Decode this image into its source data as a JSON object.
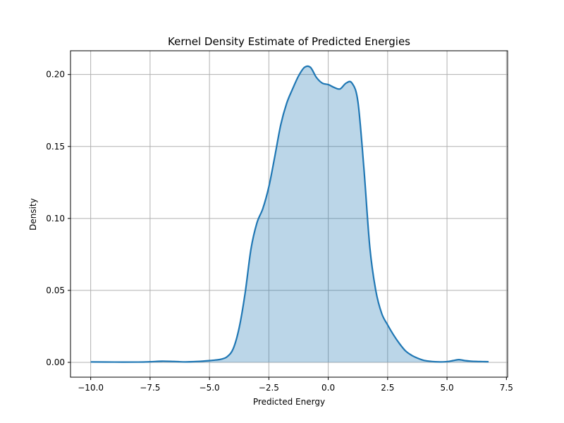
{
  "chart_data": {
    "type": "area",
    "title": "Kernel Density Estimate of Predicted Energies",
    "xlabel": "Predicted Energy",
    "ylabel": "Density",
    "xlim": [
      -10.85,
      7.55
    ],
    "ylim": [
      -0.0103,
      0.2165
    ],
    "xticks": [
      -10.0,
      -7.5,
      -5.0,
      -2.5,
      0.0,
      2.5,
      5.0,
      7.5
    ],
    "xtick_labels": [
      "−10.0",
      "−7.5",
      "−5.0",
      "−2.5",
      "0.0",
      "2.5",
      "5.0",
      "7.5"
    ],
    "yticks": [
      0.0,
      0.05,
      0.1,
      0.15,
      0.2
    ],
    "ytick_labels": [
      "0.00",
      "0.05",
      "0.10",
      "0.15",
      "0.20"
    ],
    "grid": true,
    "series": [
      {
        "line_color": "#1f77b4",
        "fill_color": "#1f77b4",
        "x": [
          -10.0,
          -9.0,
          -8.0,
          -7.5,
          -7.0,
          -6.5,
          -6.0,
          -5.5,
          -5.0,
          -4.75,
          -4.5,
          -4.25,
          -4.0,
          -3.75,
          -3.5,
          -3.25,
          -3.0,
          -2.75,
          -2.5,
          -2.25,
          -2.0,
          -1.75,
          -1.5,
          -1.25,
          -1.0,
          -0.75,
          -0.5,
          -0.25,
          0.0,
          0.25,
          0.5,
          0.75,
          1.0,
          1.25,
          1.5,
          1.75,
          2.0,
          2.25,
          2.5,
          2.75,
          3.0,
          3.25,
          3.5,
          3.75,
          4.0,
          4.25,
          4.5,
          4.75,
          5.0,
          5.25,
          5.5,
          5.75,
          6.0,
          6.25,
          6.5,
          6.75
        ],
        "y": [
          0.0003,
          0.0002,
          0.0002,
          0.0004,
          0.0008,
          0.0006,
          0.0003,
          0.0006,
          0.0012,
          0.0016,
          0.0022,
          0.004,
          0.0095,
          0.024,
          0.048,
          0.079,
          0.097,
          0.107,
          0.122,
          0.143,
          0.165,
          0.18,
          0.19,
          0.199,
          0.205,
          0.205,
          0.198,
          0.194,
          0.193,
          0.191,
          0.19,
          0.194,
          0.194,
          0.181,
          0.135,
          0.08,
          0.05,
          0.034,
          0.026,
          0.019,
          0.013,
          0.008,
          0.005,
          0.003,
          0.0015,
          0.0008,
          0.0004,
          0.0003,
          0.0005,
          0.0012,
          0.0019,
          0.0012,
          0.0008,
          0.0006,
          0.0005,
          0.0004
        ]
      }
    ]
  }
}
